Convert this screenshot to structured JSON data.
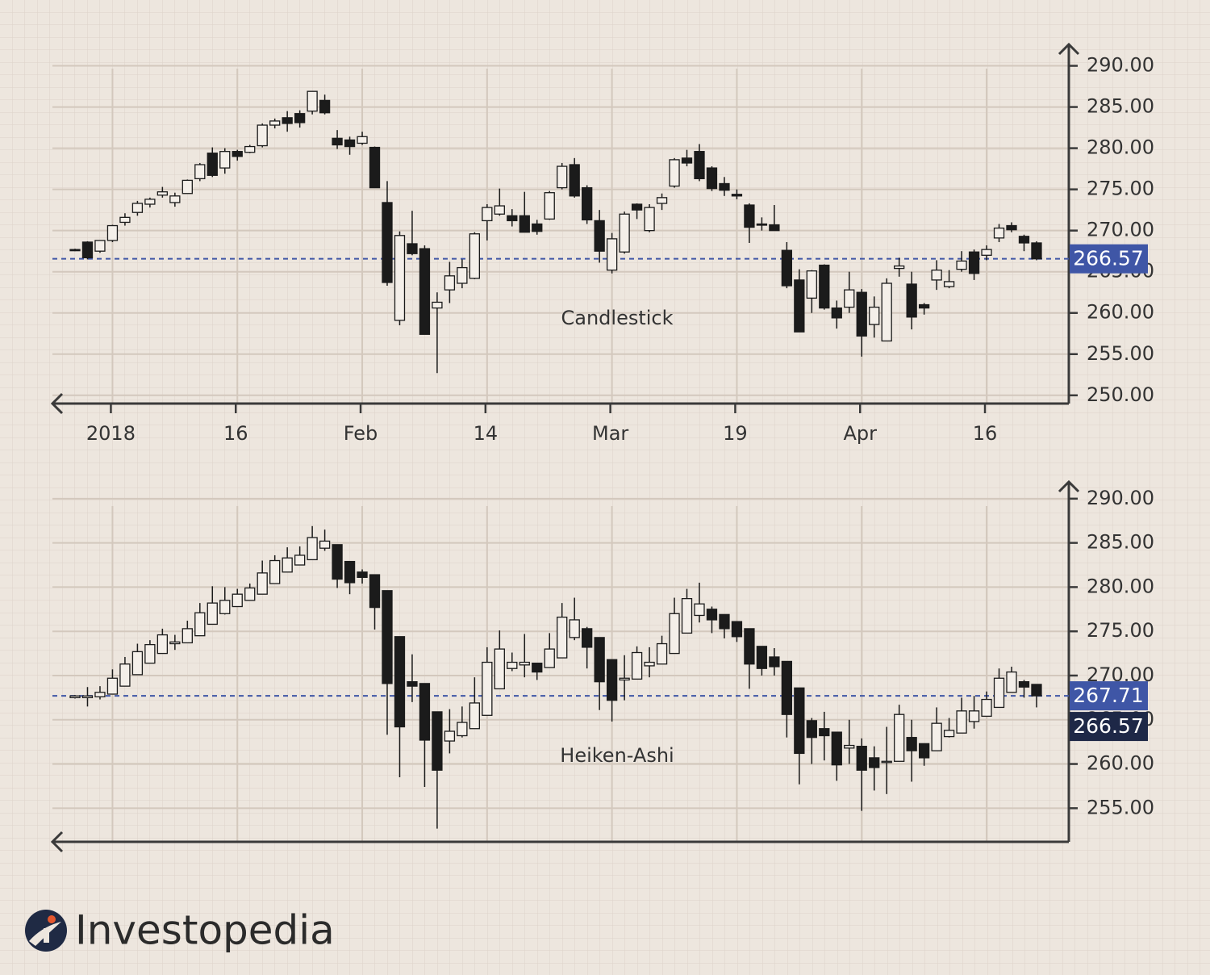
{
  "chart_data": [
    {
      "type": "candlestick",
      "title": "Candlestick",
      "categories": [
        null,
        null,
        null,
        "2018",
        null,
        null,
        null,
        null,
        null,
        null,
        null,
        null,
        null,
        "16",
        null,
        null,
        null,
        null,
        null,
        null,
        null,
        null,
        null,
        "Feb",
        null,
        null,
        null,
        null,
        null,
        null,
        null,
        null,
        null,
        "14",
        null,
        null,
        null,
        null,
        null,
        null,
        null,
        null,
        null,
        "Mar",
        null,
        null,
        null,
        null,
        null,
        null,
        null,
        null,
        null,
        "19",
        null,
        null,
        null,
        null,
        null,
        null,
        null,
        null,
        null,
        "Apr",
        null,
        null,
        null,
        null,
        null,
        null,
        null,
        null,
        null,
        "16",
        null,
        null,
        null,
        null
      ],
      "open": [
        267.7,
        268.6,
        267.5,
        268.8,
        271.0,
        272.2,
        273.2,
        274.3,
        273.4,
        274.5,
        276.3,
        279.4,
        277.6,
        279.6,
        279.5,
        280.3,
        282.8,
        283.7,
        284.2,
        284.5,
        285.8,
        281.2,
        281.0,
        280.6,
        280.1,
        273.4,
        259.1,
        268.4,
        267.8,
        260.6,
        262.8,
        263.6,
        264.2,
        271.2,
        272.0,
        271.8,
        271.8,
        270.8,
        271.4,
        275.2,
        278.0,
        275.2,
        271.2,
        265.2,
        267.4,
        273.2,
        270.0,
        273.3,
        275.4,
        278.8,
        279.6,
        277.6,
        275.7,
        274.4,
        273.1,
        270.8,
        270.7,
        267.6,
        264.0,
        261.8,
        265.8,
        260.6,
        260.7,
        262.5,
        258.6,
        256.6,
        265.4,
        263.5,
        261.0,
        264.0,
        263.2,
        265.3,
        267.4,
        267.0,
        269.1,
        270.6,
        269.3,
        268.5
      ],
      "high": [
        267.8,
        268.7,
        268.8,
        270.7,
        272.1,
        273.6,
        274.0,
        275.3,
        274.6,
        276.2,
        278.2,
        280.1,
        280.0,
        279.8,
        280.4,
        283.0,
        283.6,
        284.5,
        284.6,
        286.9,
        286.5,
        282.2,
        281.4,
        282.0,
        280.2,
        276.0,
        269.9,
        272.4,
        268.2,
        262.5,
        266.2,
        266.5,
        269.8,
        273.2,
        275.1,
        272.6,
        274.7,
        271.3,
        274.8,
        278.2,
        278.8,
        275.5,
        272.5,
        269.7,
        272.3,
        273.3,
        273.2,
        274.5,
        278.8,
        279.8,
        280.5,
        277.8,
        276.5,
        275.0,
        273.3,
        271.6,
        273.1,
        268.6,
        265.3,
        265.2,
        265.9,
        261.5,
        265.0,
        262.9,
        262.0,
        264.2,
        266.7,
        265.0,
        261.2,
        266.4,
        265.2,
        267.5,
        267.7,
        268.2,
        270.8,
        271.0,
        269.5,
        268.7
      ],
      "low": [
        267.5,
        266.5,
        267.3,
        268.6,
        270.6,
        271.8,
        272.8,
        274.0,
        272.9,
        274.5,
        276.0,
        276.5,
        276.9,
        278.5,
        279.4,
        280.1,
        282.4,
        282.0,
        282.5,
        284.1,
        284.1,
        279.9,
        279.2,
        280.4,
        275.2,
        263.3,
        258.5,
        267.0,
        257.4,
        252.7,
        261.2,
        263.0,
        264.1,
        268.8,
        271.8,
        270.5,
        269.8,
        269.5,
        271.3,
        275.0,
        274.0,
        270.8,
        266.1,
        264.8,
        267.2,
        271.4,
        269.8,
        272.5,
        275.2,
        277.8,
        276.0,
        274.8,
        274.2,
        273.8,
        268.5,
        270.0,
        270.0,
        263.0,
        257.7,
        260.0,
        260.4,
        258.1,
        260.0,
        254.7,
        257.0,
        256.6,
        264.4,
        258.0,
        259.8,
        262.8,
        263.0,
        265.0,
        264.0,
        266.4,
        268.6,
        269.8,
        267.5,
        266.4
      ],
      "close": [
        267.6,
        266.7,
        268.8,
        270.6,
        271.6,
        273.3,
        273.8,
        274.7,
        274.2,
        276.1,
        278.0,
        276.7,
        279.6,
        279.0,
        280.2,
        282.8,
        283.3,
        283.0,
        283.1,
        286.9,
        284.3,
        280.4,
        280.2,
        281.4,
        275.2,
        263.7,
        269.4,
        267.2,
        257.4,
        261.3,
        264.5,
        265.5,
        269.6,
        272.8,
        273.0,
        271.2,
        269.8,
        269.9,
        274.6,
        277.8,
        274.2,
        271.3,
        267.5,
        269.0,
        272.0,
        272.5,
        272.8,
        274.0,
        278.6,
        278.2,
        276.3,
        275.1,
        274.9,
        274.2,
        270.4,
        270.7,
        270.0,
        263.3,
        257.7,
        265.1,
        260.6,
        259.4,
        262.8,
        257.2,
        260.7,
        263.6,
        265.7,
        259.5,
        260.6,
        265.2,
        263.8,
        266.3,
        264.8,
        267.7,
        270.3,
        270.1,
        268.5,
        266.57
      ],
      "up_color": "#f4efe9",
      "down_color": "#1b1b1b",
      "ylim": [
        249,
        292.6
      ],
      "yticks": [
        {
          "value": 250,
          "label": "250.00"
        },
        {
          "value": 255,
          "label": "255.00"
        },
        {
          "value": 260,
          "label": "260.00"
        },
        {
          "value": 265,
          "label": "265.00"
        },
        {
          "value": 270,
          "label": "270.00"
        },
        {
          "value": 275,
          "label": "275.00"
        },
        {
          "value": 280,
          "label": "280.00"
        },
        {
          "value": 285,
          "label": "285.00"
        },
        {
          "value": 290,
          "label": "290.00"
        }
      ],
      "grid": true,
      "price_line": {
        "value": 266.57,
        "label": "266.57",
        "color": "#3f56a6"
      }
    },
    {
      "type": "candlestick",
      "title": "Heiken-Ashi",
      "open": [
        267.5,
        267.5,
        267.6,
        267.9,
        268.8,
        270.1,
        271.4,
        272.5,
        273.6,
        273.7,
        274.5,
        275.8,
        277.0,
        277.8,
        278.5,
        279.2,
        280.4,
        281.7,
        282.5,
        283.1,
        284.4,
        284.8,
        282.9,
        281.7,
        281.4,
        279.6,
        274.4,
        269.3,
        269.1,
        265.9,
        262.6,
        263.2,
        264.0,
        265.5,
        268.5,
        270.8,
        271.2,
        271.4,
        270.9,
        272.0,
        274.3,
        275.3,
        274.3,
        271.8,
        269.5,
        269.6,
        271.1,
        271.3,
        272.5,
        274.8,
        276.8,
        277.5,
        276.9,
        276.1,
        275.3,
        273.3,
        272.1,
        271.6,
        268.6,
        264.9,
        264.0,
        263.6,
        261.8,
        262.0,
        260.7,
        260.2,
        260.3,
        263.0,
        262.3,
        261.5,
        263.1,
        263.5,
        264.8,
        265.4,
        266.4,
        268.1,
        269.3,
        269.0
      ],
      "high": [
        267.8,
        268.7,
        268.8,
        270.7,
        272.1,
        273.6,
        274.0,
        275.3,
        274.6,
        276.2,
        278.2,
        280.1,
        280.0,
        279.8,
        280.4,
        283.0,
        283.6,
        284.5,
        284.6,
        286.9,
        286.5,
        284.8,
        282.9,
        282.0,
        281.4,
        279.6,
        274.4,
        272.4,
        269.1,
        265.9,
        266.2,
        266.5,
        269.8,
        273.2,
        275.1,
        272.6,
        274.7,
        271.4,
        274.8,
        278.2,
        278.8,
        275.5,
        274.3,
        271.8,
        272.3,
        273.3,
        273.2,
        274.5,
        278.8,
        279.8,
        280.5,
        277.8,
        276.9,
        276.1,
        275.3,
        273.3,
        273.1,
        271.6,
        268.6,
        265.2,
        265.9,
        263.6,
        265.0,
        262.9,
        262.0,
        264.2,
        266.7,
        265.0,
        262.3,
        266.4,
        265.2,
        267.5,
        267.7,
        268.2,
        270.8,
        271.0,
        269.5,
        269.0
      ],
      "low": [
        267.4,
        266.5,
        267.3,
        267.9,
        268.8,
        270.1,
        271.4,
        272.5,
        272.9,
        273.7,
        274.5,
        275.8,
        276.9,
        277.8,
        278.5,
        279.2,
        280.4,
        281.7,
        282.5,
        283.1,
        284.1,
        279.9,
        279.2,
        280.4,
        275.2,
        263.3,
        258.5,
        267.0,
        257.4,
        252.7,
        261.2,
        263.0,
        264.0,
        265.5,
        268.5,
        270.5,
        269.8,
        269.5,
        270.9,
        272.0,
        274.0,
        270.8,
        266.1,
        264.8,
        267.2,
        269.6,
        269.8,
        271.3,
        272.5,
        274.8,
        276.0,
        274.8,
        274.2,
        273.8,
        268.5,
        270.0,
        270.0,
        263.0,
        257.7,
        260.0,
        260.4,
        258.1,
        260.0,
        254.7,
        257.0,
        256.6,
        260.3,
        258.0,
        259.8,
        261.5,
        263.0,
        263.5,
        264.0,
        265.4,
        266.4,
        268.1,
        267.5,
        266.4
      ],
      "close": [
        267.7,
        267.7,
        268.1,
        269.7,
        271.3,
        272.7,
        273.5,
        274.6,
        273.8,
        275.3,
        277.1,
        278.2,
        278.5,
        279.2,
        279.9,
        281.6,
        283.0,
        283.3,
        283.6,
        285.6,
        285.2,
        280.9,
        280.5,
        281.1,
        277.7,
        269.1,
        264.2,
        268.8,
        262.7,
        259.3,
        263.7,
        264.7,
        266.9,
        271.5,
        273.0,
        271.5,
        271.5,
        270.4,
        273.0,
        276.6,
        276.3,
        273.2,
        269.3,
        267.2,
        269.7,
        272.6,
        271.5,
        273.6,
        277.0,
        278.7,
        278.1,
        276.3,
        275.3,
        274.4,
        271.3,
        270.8,
        271.0,
        265.6,
        261.2,
        263.0,
        263.2,
        259.9,
        262.1,
        259.3,
        259.6,
        260.3,
        265.6,
        261.5,
        260.7,
        264.6,
        263.8,
        266.0,
        266.0,
        267.3,
        269.7,
        270.4,
        268.7,
        267.71
      ],
      "up_color": "#f4efe9",
      "down_color": "#1b1b1b",
      "ylim": [
        251.2,
        291.9
      ],
      "yticks": [
        {
          "value": 255,
          "label": "255.00"
        },
        {
          "value": 260,
          "label": "260.00"
        },
        {
          "value": 265,
          "label": "265.00"
        },
        {
          "value": 270,
          "label": "270.00"
        },
        {
          "value": 275,
          "label": "275.00"
        },
        {
          "value": 280,
          "label": "280.00"
        },
        {
          "value": 285,
          "label": "285.00"
        },
        {
          "value": 290,
          "label": "290.00"
        }
      ],
      "grid": true,
      "price_line": {
        "value": 267.71,
        "label": "267.71",
        "color": "#3f56a6"
      },
      "last_price": {
        "value": 266.57,
        "label": "266.57",
        "color": "#1e2847"
      }
    }
  ],
  "logo": "Investopedia"
}
